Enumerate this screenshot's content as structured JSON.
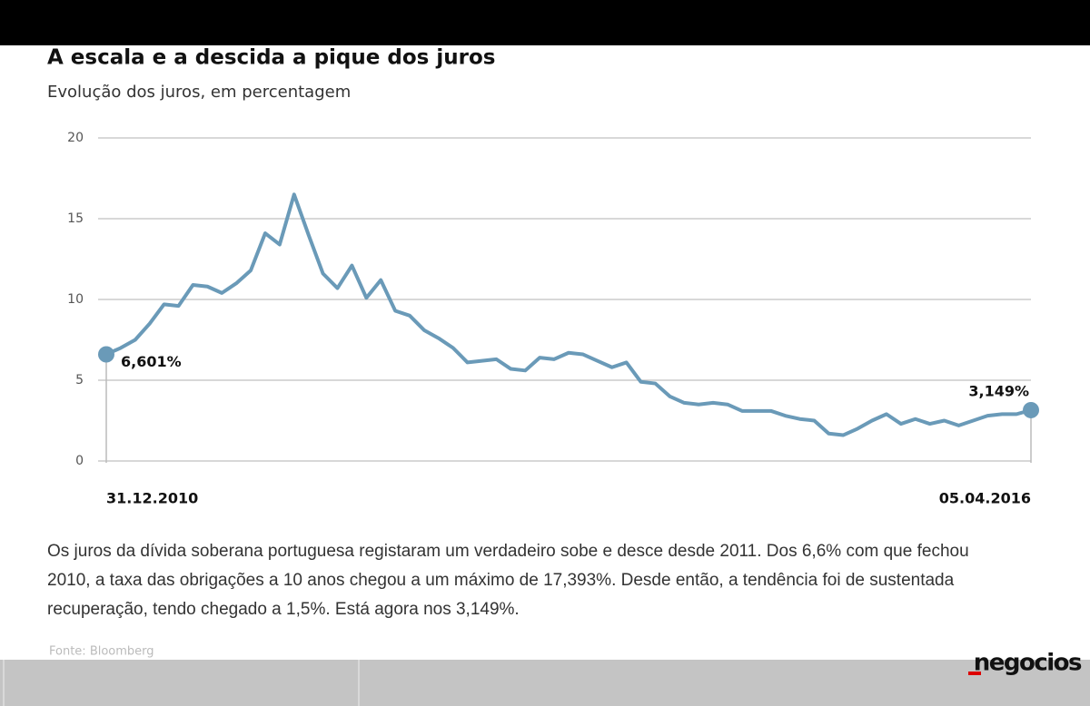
{
  "chart_data": {
    "type": "line",
    "title": "A escala e a descida a pique dos juros",
    "subtitle": "Evolução dos juros, em percentagem",
    "categories": [
      "31.12.2010",
      null,
      null,
      null,
      null,
      null,
      null,
      null,
      null,
      null,
      null,
      null,
      null,
      null,
      null,
      null,
      null,
      null,
      null,
      null,
      null,
      null,
      null,
      null,
      null,
      null,
      null,
      null,
      null,
      null,
      null,
      null,
      null,
      null,
      null,
      null,
      null,
      null,
      null,
      null,
      null,
      null,
      null,
      null,
      null,
      null,
      null,
      null,
      null,
      null,
      null,
      null,
      null,
      null,
      null,
      null,
      null,
      null,
      null,
      null,
      null,
      null,
      null,
      null,
      "05.04.2016"
    ],
    "series": [
      {
        "color": "#6a9ab8",
        "values": [
          6.601,
          7.0,
          7.5,
          8.5,
          9.7,
          9.6,
          10.9,
          10.8,
          10.4,
          11.0,
          11.8,
          14.1,
          13.4,
          16.5,
          14.0,
          11.6,
          10.7,
          12.1,
          10.1,
          11.2,
          9.3,
          9.0,
          8.1,
          7.6,
          7.0,
          6.1,
          6.2,
          6.3,
          5.7,
          5.6,
          6.4,
          6.3,
          6.7,
          6.6,
          6.2,
          5.8,
          6.1,
          4.9,
          4.8,
          4.0,
          3.6,
          3.5,
          3.6,
          3.5,
          3.1,
          3.1,
          3.1,
          2.8,
          2.6,
          2.5,
          1.7,
          1.6,
          2.0,
          2.5,
          2.9,
          2.3,
          2.6,
          2.3,
          2.5,
          2.2,
          2.5,
          2.8,
          2.9,
          2.9,
          3.149
        ],
        "value_labels": [
          "6,601%",
          null,
          null,
          null,
          null,
          null,
          null,
          null,
          null,
          null,
          null,
          null,
          null,
          null,
          null,
          null,
          null,
          null,
          null,
          null,
          null,
          null,
          null,
          null,
          null,
          null,
          null,
          null,
          null,
          null,
          null,
          null,
          null,
          null,
          null,
          null,
          null,
          null,
          null,
          null,
          null,
          null,
          null,
          null,
          null,
          null,
          null,
          null,
          null,
          null,
          null,
          null,
          null,
          null,
          null,
          null,
          null,
          null,
          null,
          null,
          null,
          null,
          null,
          null,
          "3,149%"
        ]
      }
    ],
    "ylim": [
      0,
      20
    ],
    "yticks": [
      0,
      5,
      10,
      15,
      20
    ],
    "grid": true
  },
  "description": "Os juros da dívida soberana portuguesa registaram um verdadeiro sobe e desce desde 2011. Dos 6,6% com que fechou 2010, a taxa das obrigações a 10 anos chegou a um máximo de 17,393%. Desde então, a tendência foi de sustentada recuperação, tendo chegado a 1,5%. Está agora nos 3,149%.",
  "source": "Fonte: Bloomberg",
  "brand": "negocios"
}
